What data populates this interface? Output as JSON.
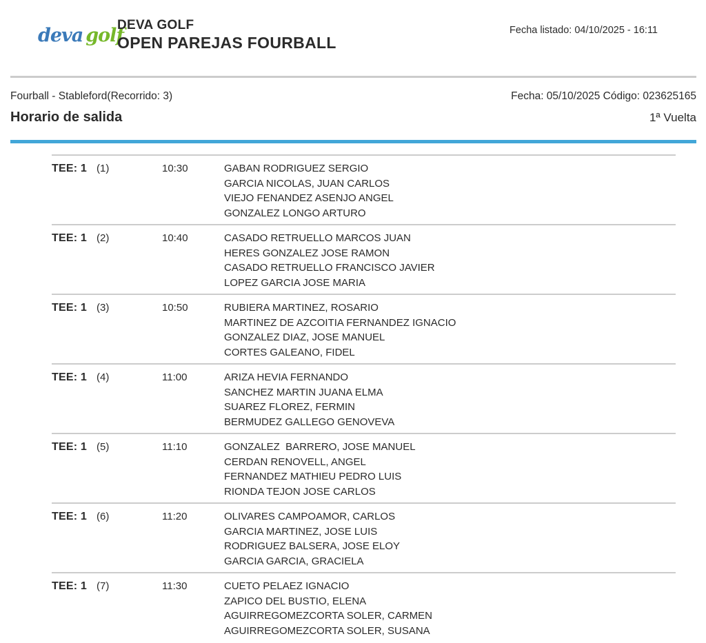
{
  "header": {
    "logo": {
      "deva": "deva",
      "golf": "golf",
      "deva_color": "#3b7ab9",
      "golf_color": "#76b82a"
    },
    "club_name": "DEVA GOLF",
    "event_title": "OPEN PAREJAS FOURBALL",
    "listing_date": "Fecha listado: 04/10/2025 - 16:11"
  },
  "subheader": {
    "format": "Fourball - Stableford(Recorrido: 3)",
    "date_code": "Fecha: 05/10/2025 Código: 023625165",
    "section_title": "Horario de salida",
    "round_label": "1ª Vuelta",
    "accent_color": "#42a6d8"
  },
  "schedule": {
    "groups": [
      {
        "tee": "TEE: 1",
        "order": "(1)",
        "time": "10:30",
        "players": [
          "GABAN RODRIGUEZ SERGIO",
          "GARCIA NICOLAS, JUAN CARLOS",
          "VIEJO FENANDEZ ASENJO ANGEL",
          "GONZALEZ LONGO ARTURO"
        ]
      },
      {
        "tee": "TEE: 1",
        "order": "(2)",
        "time": "10:40",
        "players": [
          "CASADO RETRUELLO MARCOS JUAN",
          "HERES GONZALEZ JOSE RAMON",
          "CASADO RETRUELLO FRANCISCO JAVIER",
          "LOPEZ GARCIA JOSE MARIA"
        ]
      },
      {
        "tee": "TEE: 1",
        "order": "(3)",
        "time": "10:50",
        "players": [
          "RUBIERA MARTINEZ, ROSARIO",
          "MARTINEZ DE AZCOITIA FERNANDEZ IGNACIO",
          "GONZALEZ DIAZ, JOSE MANUEL",
          "CORTES GALEANO, FIDEL"
        ]
      },
      {
        "tee": "TEE: 1",
        "order": "(4)",
        "time": "11:00",
        "players": [
          "ARIZA HEVIA FERNANDO",
          "SANCHEZ MARTIN JUANA ELMA",
          "SUAREZ FLOREZ, FERMIN",
          "BERMUDEZ GALLEGO GENOVEVA"
        ]
      },
      {
        "tee": "TEE: 1",
        "order": "(5)",
        "time": "11:10",
        "players": [
          "GONZALEZ  BARRERO, JOSE MANUEL",
          "CERDAN RENOVELL, ANGEL",
          "FERNANDEZ MATHIEU PEDRO LUIS",
          "RIONDA TEJON JOSE CARLOS"
        ]
      },
      {
        "tee": "TEE: 1",
        "order": "(6)",
        "time": "11:20",
        "players": [
          "OLIVARES CAMPOAMOR, CARLOS",
          "GARCIA MARTINEZ, JOSE LUIS",
          "RODRIGUEZ BALSERA, JOSE ELOY",
          "GARCIA GARCIA, GRACIELA"
        ]
      },
      {
        "tee": "TEE: 1",
        "order": "(7)",
        "time": "11:30",
        "players": [
          "CUETO PELAEZ IGNACIO",
          "ZAPICO DEL BUSTIO, ELENA",
          "AGUIRREGOMEZCORTA SOLER, CARMEN",
          "AGUIRREGOMEZCORTA SOLER, SUSANA"
        ]
      }
    ]
  }
}
